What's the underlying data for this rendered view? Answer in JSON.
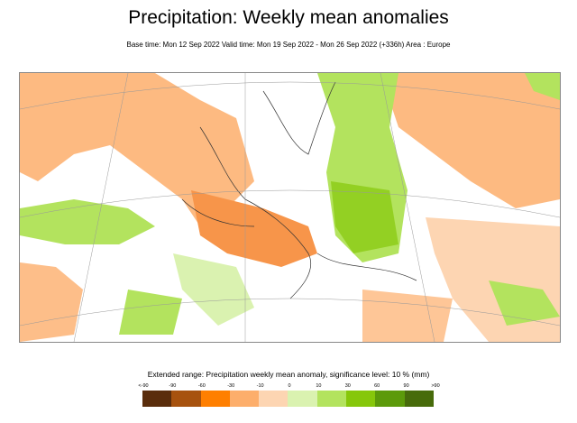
{
  "title": "Precipitation: Weekly mean anomalies",
  "subtitle": "Base time: Mon 12 Sep 2022 Valid time: Mon 19 Sep 2022 - Mon 26 Sep 2022 (+336h) Area : Europe",
  "legend": {
    "title": "Extended range: Precipitation weekly mean anomaly, significance level: 10 % (mm)",
    "ticks": [
      "<-90",
      "-90",
      "-60",
      "-30",
      "-10",
      "0",
      "10",
      "30",
      "60",
      "90",
      ">90"
    ],
    "colors": [
      "#5a2d0c",
      "#a7520e",
      "#ff7f00",
      "#fdae6b",
      "#fdd5b2",
      "#daf2b0",
      "#b3e35e",
      "#86c70a",
      "#5c9a0a",
      "#476b0b"
    ]
  },
  "colors": {
    "dry": "#fdae6b",
    "light_dry": "#fdd5b2",
    "wet": "#b3e35e",
    "light_wet": "#daf2b0"
  }
}
